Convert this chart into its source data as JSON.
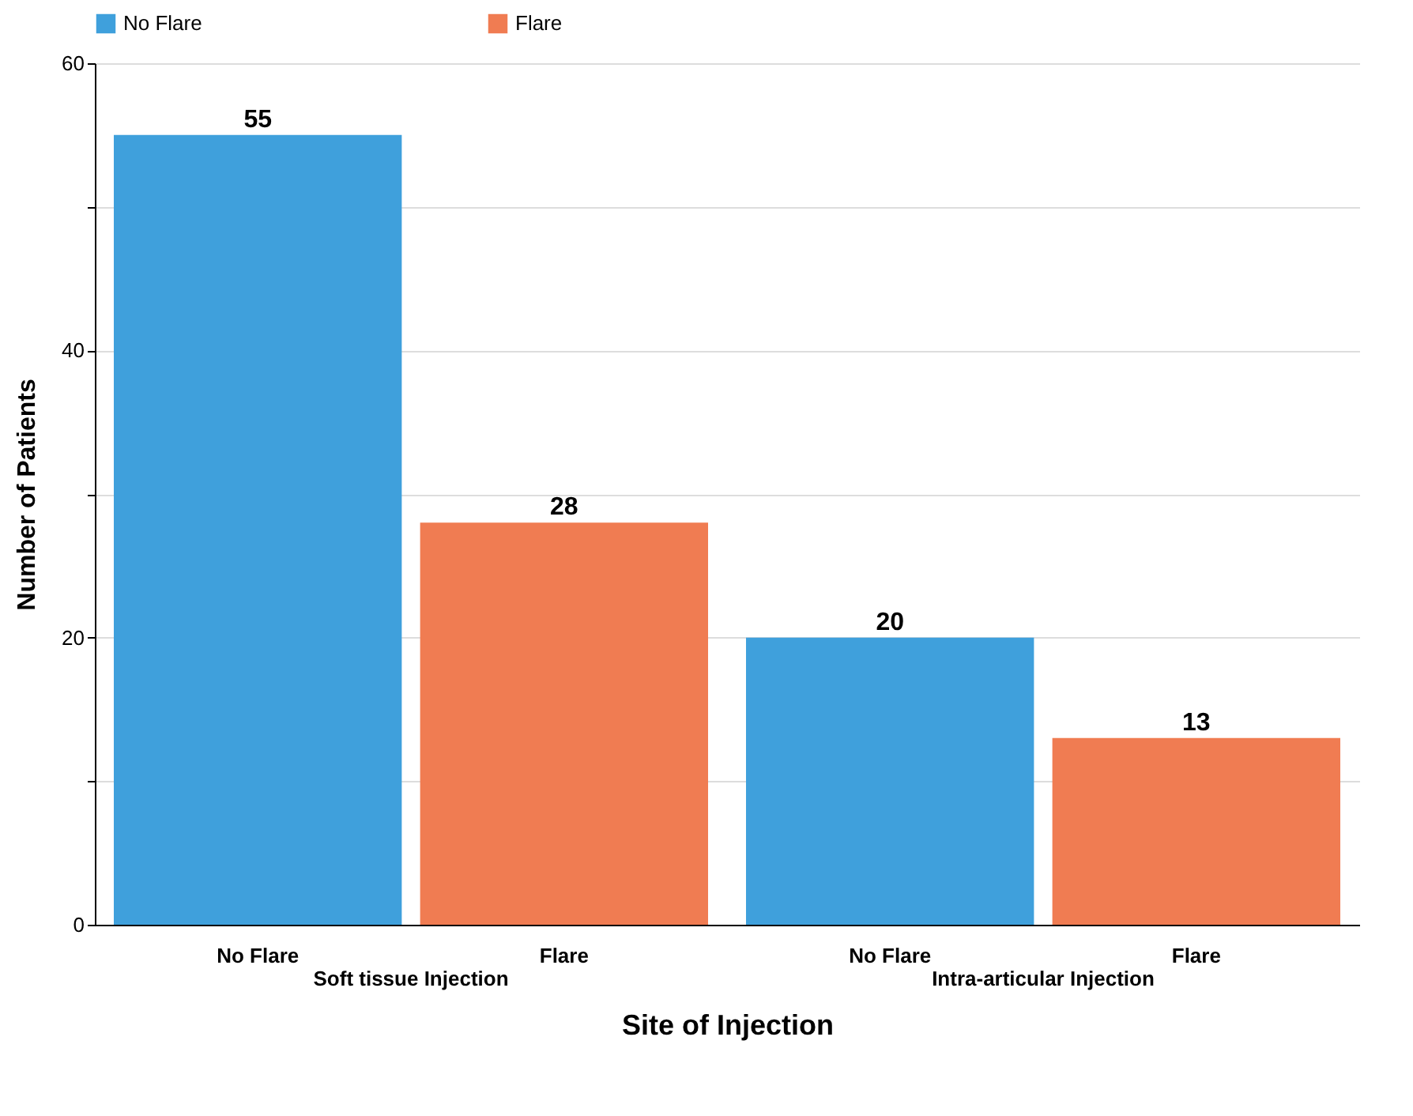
{
  "chart_data": {
    "type": "bar",
    "xlabel": "Site of Injection",
    "ylabel": "Number of Patients",
    "categories": [
      "Soft tissue Injection",
      "Intra-articular Injection"
    ],
    "series": [
      {
        "name": "No Flare",
        "color": "#3fa0dc",
        "values": [
          55,
          20
        ]
      },
      {
        "name": "Flare",
        "color": "#f07c52",
        "values": [
          28,
          13
        ]
      }
    ],
    "ylim": [
      0,
      60
    ],
    "yticks": [
      0,
      {
        "value": 10,
        "label": null
      },
      20,
      {
        "value": 30,
        "label": null
      },
      40,
      {
        "value": 50,
        "label": null
      },
      60
    ],
    "grid": "y",
    "legend": "top",
    "data_labels": true
  }
}
